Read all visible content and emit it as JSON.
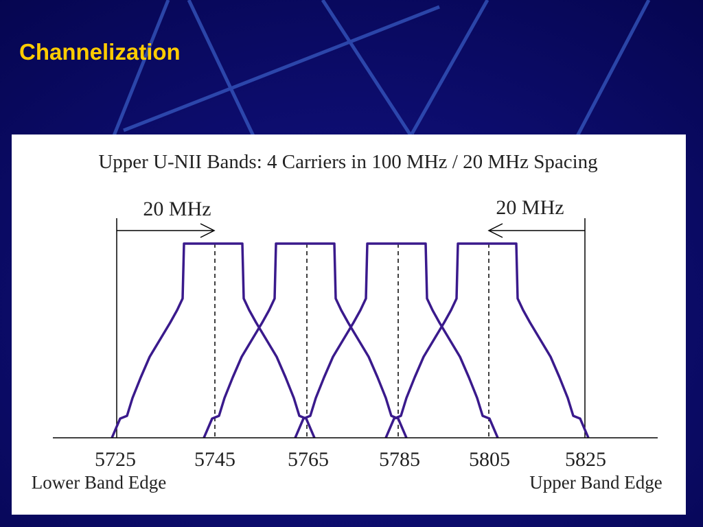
{
  "title": "Channelization",
  "figure": {
    "heading": "Upper U-NII Bands: 4 Carriers in 100 MHz / 20 MHz Spacing",
    "left_spacing_label": "20 MHz",
    "right_spacing_label": "20 MHz",
    "frequencies": [
      "5725",
      "5745",
      "5765",
      "5785",
      "5805",
      "5825"
    ],
    "lower_edge_label": "Lower Band Edge",
    "upper_edge_label": "Upper Band Edge"
  }
}
